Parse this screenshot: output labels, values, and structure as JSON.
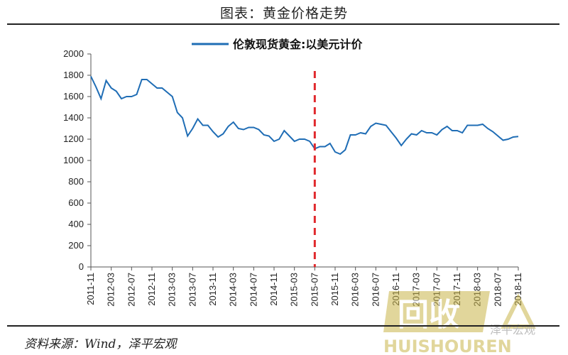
{
  "title": "图表：黄金价格走势",
  "source": "资料来源：Wind，泽平宏观",
  "chart_data": {
    "type": "line",
    "series": [
      {
        "name": "伦敦现货黄金:以美元计价",
        "color": "#1f6db5",
        "points": [
          [
            "2011-11",
            1790
          ],
          [
            "2011-12",
            1690
          ],
          [
            "2012-01",
            1580
          ],
          [
            "2012-02",
            1750
          ],
          [
            "2012-03",
            1680
          ],
          [
            "2012-04",
            1650
          ],
          [
            "2012-05",
            1580
          ],
          [
            "2012-06",
            1600
          ],
          [
            "2012-07",
            1600
          ],
          [
            "2012-08",
            1620
          ],
          [
            "2012-09",
            1760
          ],
          [
            "2012-10",
            1760
          ],
          [
            "2012-11",
            1720
          ],
          [
            "2012-12",
            1680
          ],
          [
            "2013-01",
            1680
          ],
          [
            "2013-02",
            1640
          ],
          [
            "2013-03",
            1600
          ],
          [
            "2013-04",
            1450
          ],
          [
            "2013-05",
            1400
          ],
          [
            "2013-06",
            1230
          ],
          [
            "2013-07",
            1300
          ],
          [
            "2013-08",
            1390
          ],
          [
            "2013-09",
            1330
          ],
          [
            "2013-10",
            1330
          ],
          [
            "2013-11",
            1270
          ],
          [
            "2013-12",
            1220
          ],
          [
            "2014-01",
            1250
          ],
          [
            "2014-02",
            1320
          ],
          [
            "2014-03",
            1360
          ],
          [
            "2014-04",
            1300
          ],
          [
            "2014-05",
            1290
          ],
          [
            "2014-06",
            1310
          ],
          [
            "2014-07",
            1310
          ],
          [
            "2014-08",
            1290
          ],
          [
            "2014-09",
            1240
          ],
          [
            "2014-10",
            1230
          ],
          [
            "2014-11",
            1180
          ],
          [
            "2014-12",
            1200
          ],
          [
            "2015-01",
            1280
          ],
          [
            "2015-02",
            1230
          ],
          [
            "2015-03",
            1180
          ],
          [
            "2015-04",
            1200
          ],
          [
            "2015-05",
            1200
          ],
          [
            "2015-06",
            1180
          ],
          [
            "2015-07",
            1110
          ],
          [
            "2015-08",
            1130
          ],
          [
            "2015-09",
            1130
          ],
          [
            "2015-10",
            1160
          ],
          [
            "2015-11",
            1080
          ],
          [
            "2015-12",
            1060
          ],
          [
            "2016-01",
            1100
          ],
          [
            "2016-02",
            1240
          ],
          [
            "2016-03",
            1240
          ],
          [
            "2016-04",
            1260
          ],
          [
            "2016-05",
            1250
          ],
          [
            "2016-06",
            1320
          ],
          [
            "2016-07",
            1350
          ],
          [
            "2016-08",
            1340
          ],
          [
            "2016-09",
            1330
          ],
          [
            "2016-10",
            1270
          ],
          [
            "2016-11",
            1210
          ],
          [
            "2016-12",
            1140
          ],
          [
            "2017-01",
            1200
          ],
          [
            "2017-02",
            1250
          ],
          [
            "2017-03",
            1240
          ],
          [
            "2017-04",
            1280
          ],
          [
            "2017-05",
            1260
          ],
          [
            "2017-06",
            1260
          ],
          [
            "2017-07",
            1240
          ],
          [
            "2017-08",
            1290
          ],
          [
            "2017-09",
            1320
          ],
          [
            "2017-10",
            1280
          ],
          [
            "2017-11",
            1280
          ],
          [
            "2017-12",
            1260
          ],
          [
            "2018-01",
            1330
          ],
          [
            "2018-02",
            1330
          ],
          [
            "2018-03",
            1330
          ],
          [
            "2018-04",
            1340
          ],
          [
            "2018-05",
            1300
          ],
          [
            "2018-06",
            1270
          ],
          [
            "2018-07",
            1230
          ],
          [
            "2018-08",
            1190
          ],
          [
            "2018-09",
            1200
          ],
          [
            "2018-10",
            1220
          ],
          [
            "2018-11",
            1225
          ]
        ]
      }
    ],
    "x_tick_labels": [
      "2011-11",
      "2012-03",
      "2012-07",
      "2012-11",
      "2013-03",
      "2013-07",
      "2013-11",
      "2014-03",
      "2014-07",
      "2014-11",
      "2015-03",
      "2015-07",
      "2015-11",
      "2016-03",
      "2016-07",
      "2016-11",
      "2017-03",
      "2017-07",
      "2017-11",
      "2018-03",
      "2018-07",
      "2018-11"
    ],
    "y_ticks": [
      0,
      200,
      400,
      600,
      800,
      1000,
      1200,
      1400,
      1600,
      1800,
      2000
    ],
    "ylim": [
      0,
      2000
    ],
    "xlim": [
      "2011-11",
      "2018-11"
    ],
    "grid": false,
    "legend_position": "top",
    "reference_line": {
      "x": "2015-07",
      "style": "dashed",
      "color": "#e0282c"
    }
  },
  "watermark": {
    "text": "HUISHOUREN",
    "logo": "回收",
    "caption": "泽平宏观"
  }
}
